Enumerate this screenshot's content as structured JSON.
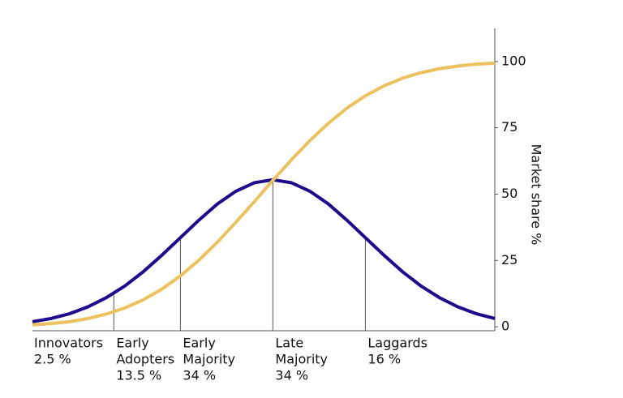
{
  "chart_data": {
    "type": "line",
    "y_label": "Market share %",
    "xlim": [
      -2.6,
      2.4
    ],
    "ylim": [
      -1.5,
      112.5
    ],
    "yticks": [
      0,
      25,
      50,
      75,
      100
    ],
    "x": [
      -2.6,
      -2.4,
      -2.2,
      -2.0,
      -1.8,
      -1.6,
      -1.4,
      -1.2,
      -1.0,
      -0.8,
      -0.6,
      -0.4,
      -0.2,
      0,
      0.2,
      0.4,
      0.6,
      0.8,
      1.0,
      1.2,
      1.4,
      1.6,
      1.8,
      2.0,
      2.2,
      2.4
    ],
    "series": [
      {
        "color": "#1e0a8c",
        "values": [
          1.9,
          3.1,
          4.9,
          7.5,
          11.0,
          15.4,
          20.8,
          27.0,
          33.6,
          40.2,
          46.3,
          51.1,
          54.3,
          55.4,
          54.3,
          51.1,
          46.3,
          40.2,
          33.6,
          27.0,
          20.8,
          15.4,
          11.0,
          7.5,
          4.9,
          3.1
        ]
      },
      {
        "color": "#ecc15f",
        "values": [
          0.7,
          1.2,
          1.9,
          3.1,
          4.8,
          7.1,
          10.2,
          14.2,
          19.2,
          25.1,
          31.9,
          39.4,
          47.2,
          55.2,
          62.9,
          70.2,
          76.7,
          82.4,
          87.1,
          90.8,
          93.7,
          95.8,
          97.3,
          98.3,
          99.0,
          99.4
        ]
      }
    ],
    "boundaries": [
      -1.72,
      -1.0,
      0,
      1.0
    ],
    "boundary_heights": [
      12.6,
      33.6,
      55.4,
      33.6
    ],
    "segments": [
      {
        "lines": [
          "Innovators"
        ],
        "share": "2.5 %"
      },
      {
        "lines": [
          "Early",
          "Adopters"
        ],
        "share": "13.5 %"
      },
      {
        "lines": [
          "Early",
          "Majority"
        ],
        "share": "34 %"
      },
      {
        "lines": [
          "Late",
          "Majority"
        ],
        "share": "34 %"
      },
      {
        "lines": [
          "Laggards"
        ],
        "share": "16 %"
      }
    ]
  }
}
